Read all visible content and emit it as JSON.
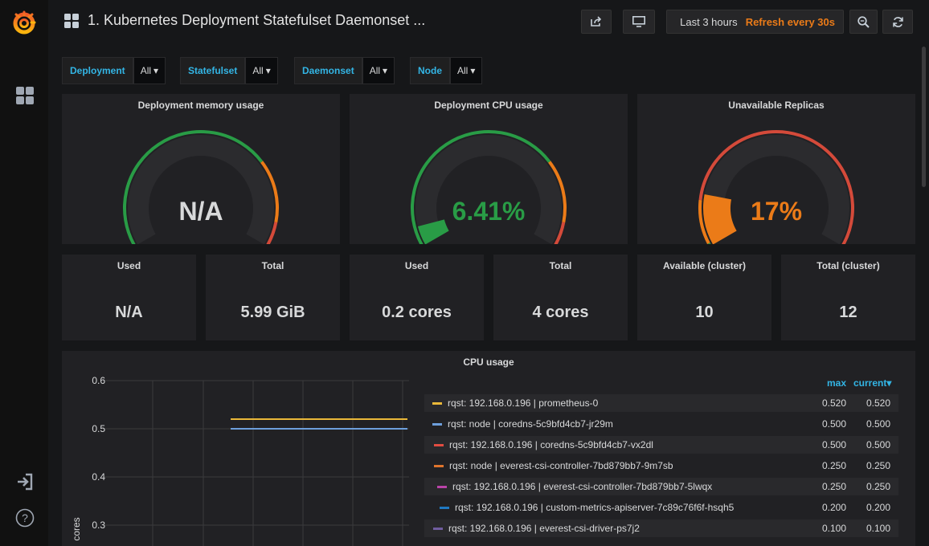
{
  "header": {
    "title": "1. Kubernetes Deployment Statefulset Daemonset ...",
    "time_range": "Last 3 hours",
    "refresh": "Refresh every 30s",
    "icons": [
      "share-icon",
      "tv-icon",
      "clock-icon",
      "zoom-out-icon",
      "refresh-icon"
    ]
  },
  "sidenav": {
    "icons": [
      "grafana-logo",
      "dashboards-icon",
      "sign-in-icon",
      "help-icon"
    ]
  },
  "variables": [
    {
      "label": "Deployment",
      "value": "All"
    },
    {
      "label": "Statefulset",
      "value": "All"
    },
    {
      "label": "Daemonset",
      "value": "All"
    },
    {
      "label": "Node",
      "value": "All"
    }
  ],
  "gauges": [
    {
      "title": "Deployment memory usage",
      "value": "N/A",
      "fill": null,
      "color": "#d8d9da"
    },
    {
      "title": "Deployment CPU usage",
      "value": "6.41%",
      "fill": 0.0641,
      "color": "#299c46"
    },
    {
      "title": "Unavailable Replicas",
      "value": "17%",
      "fill": 0.17,
      "color": "#eb7b18"
    }
  ],
  "stats": [
    {
      "title": "Used",
      "value": "N/A"
    },
    {
      "title": "Total",
      "value": "5.99 GiB"
    },
    {
      "title": "Used",
      "value": "0.2 cores"
    },
    {
      "title": "Total",
      "value": "4 cores"
    },
    {
      "title": "Available (cluster)",
      "value": "10"
    },
    {
      "title": "Total (cluster)",
      "value": "12"
    }
  ],
  "colors": {
    "green": "#299c46",
    "orange": "#eb7b18",
    "red": "#d44a3a",
    "link": "#33b5e5"
  },
  "cpu_panel": {
    "title": "CPU usage",
    "legend_headers": {
      "max": "max",
      "current": "current"
    },
    "legend": [
      {
        "name": "rqst: 192.168.0.196 | prometheus-0",
        "color": "#eab839",
        "max": "0.520",
        "current": "0.520"
      },
      {
        "name": "rqst: node | coredns-5c9bfd4cb7-jr29m",
        "color": "#6d9fdc",
        "max": "0.500",
        "current": "0.500"
      },
      {
        "name": "rqst: 192.168.0.196 | coredns-5c9bfd4cb7-vx2dl",
        "color": "#e24d42",
        "max": "0.500",
        "current": "0.500"
      },
      {
        "name": "rqst: node | everest-csi-controller-7bd879bb7-9m7sb",
        "color": "#e0752d",
        "max": "0.250",
        "current": "0.250"
      },
      {
        "name": "rqst: 192.168.0.196 | everest-csi-controller-7bd879bb7-5lwqx",
        "color": "#ba43a9",
        "max": "0.250",
        "current": "0.250"
      },
      {
        "name": "rqst: 192.168.0.196 | custom-metrics-apiserver-7c89c76f6f-hsqh5",
        "color": "#1f78c1",
        "max": "0.200",
        "current": "0.200"
      },
      {
        "name": "rqst: 192.168.0.196 | everest-csi-driver-ps7j2",
        "color": "#705da0",
        "max": "0.100",
        "current": "0.100"
      }
    ]
  },
  "chart_data": {
    "type": "line",
    "title": "CPU usage",
    "ylabel": "cores",
    "y_ticks": [
      0.6,
      0.5,
      0.4,
      0.3
    ],
    "ylim": [
      0.3,
      0.6
    ],
    "grid": true,
    "series": [
      {
        "name": "rqst: 192.168.0.196 | prometheus-0",
        "values": [
          0.52
        ]
      },
      {
        "name": "rqst: node | coredns-5c9bfd4cb7-jr29m",
        "values": [
          0.5
        ]
      }
    ]
  }
}
